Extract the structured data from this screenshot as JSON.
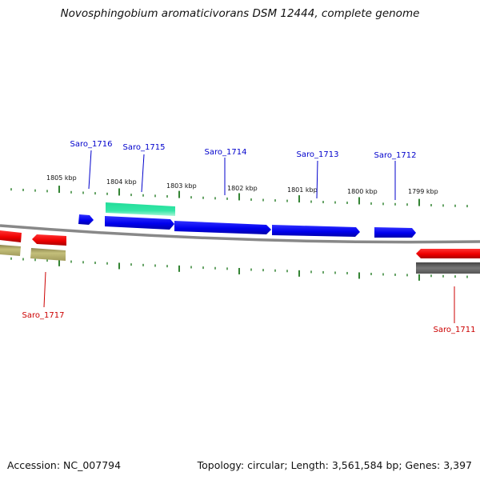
{
  "title": "Novosphingobium aromaticivorans DSM 12444, complete genome",
  "footer": {
    "accession": "Accession: NC_007794",
    "summary": "Topology: circular; Length: 3,561,584 bp; Genes: 3,397"
  },
  "kbp_labels": [
    "1805 kbp",
    "1804 kbp",
    "1803 kbp",
    "1802 kbp",
    "1801 kbp",
    "1800 kbp",
    "1799 kbp"
  ],
  "genes": [
    {
      "name": "Saro_1716",
      "color": "#0000cc"
    },
    {
      "name": "Saro_1715",
      "color": "#0000cc"
    },
    {
      "name": "Saro_1714",
      "color": "#0000cc"
    },
    {
      "name": "Saro_1713",
      "color": "#0000cc"
    },
    {
      "name": "Saro_1712",
      "color": "#0000cc"
    },
    {
      "name": "Saro_1717",
      "color": "#cc0000"
    },
    {
      "name": "Saro_1711",
      "color": "#cc0000"
    }
  ],
  "colors": {
    "forward_cds": "#0000ee",
    "reverse_cds": "#ee0000",
    "rna": "#33e6a6",
    "reverse_feature_olive": "#b5b069",
    "reverse_feature_gray": "#666666",
    "backbone": "#888888",
    "tick": "#006600"
  }
}
